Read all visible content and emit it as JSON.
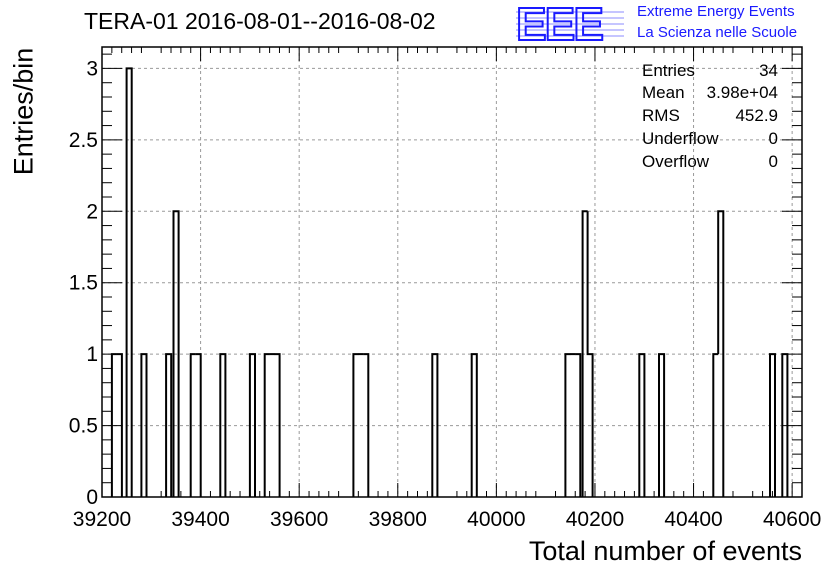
{
  "header": {
    "title": "TERA-01 2016-08-01--2016-08-02",
    "logo_text": "EEE",
    "logo_line1": "Extreme Energy Events",
    "logo_line2": "La Scienza nelle Scuole"
  },
  "stats": [
    {
      "label": "Entries",
      "value": "34"
    },
    {
      "label": "Mean",
      "value": "3.98e+04"
    },
    {
      "label": "RMS",
      "value": "452.9"
    },
    {
      "label": "Underflow",
      "value": "0"
    },
    {
      "label": "Overflow",
      "value": "0"
    }
  ],
  "colors": {
    "logo": "#1a1aff",
    "line": "#000000",
    "grid": "#9a9a9a"
  },
  "chart_data": {
    "type": "histogram",
    "title": "TERA-01 2016-08-01--2016-08-02",
    "xlabel": "Total number of events",
    "ylabel": "Entries/bin",
    "xlim": [
      39200,
      40620
    ],
    "ylim": [
      0,
      3.15
    ],
    "grid": true,
    "legend": "top-right stats box",
    "xticks": [
      "39200",
      "39400",
      "39600",
      "39800",
      "40000",
      "40200",
      "40400",
      "40600"
    ],
    "yticks": [
      "0",
      "0.5",
      "1",
      "1.5",
      "2",
      "2.5",
      "3"
    ],
    "bin_width": 10.3,
    "bins": [
      {
        "x": 39220,
        "count": 1
      },
      {
        "x": 39230,
        "count": 1
      },
      {
        "x": 39250,
        "count": 3
      },
      {
        "x": 39280,
        "count": 1
      },
      {
        "x": 39330,
        "count": 1
      },
      {
        "x": 39345,
        "count": 2
      },
      {
        "x": 39380,
        "count": 1
      },
      {
        "x": 39390,
        "count": 1
      },
      {
        "x": 39440,
        "count": 1
      },
      {
        "x": 39500,
        "count": 1
      },
      {
        "x": 39530,
        "count": 1
      },
      {
        "x": 39540,
        "count": 1
      },
      {
        "x": 39550,
        "count": 1
      },
      {
        "x": 39710,
        "count": 1
      },
      {
        "x": 39720,
        "count": 1
      },
      {
        "x": 39730,
        "count": 1
      },
      {
        "x": 39870,
        "count": 1
      },
      {
        "x": 39950,
        "count": 1
      },
      {
        "x": 40140,
        "count": 1
      },
      {
        "x": 40150,
        "count": 1
      },
      {
        "x": 40160,
        "count": 1
      },
      {
        "x": 40175,
        "count": 2
      },
      {
        "x": 40185,
        "count": 1
      },
      {
        "x": 40290,
        "count": 1
      },
      {
        "x": 40330,
        "count": 1
      },
      {
        "x": 40440,
        "count": 1
      },
      {
        "x": 40450,
        "count": 2
      },
      {
        "x": 40555,
        "count": 1
      },
      {
        "x": 40580,
        "count": 1
      }
    ]
  }
}
